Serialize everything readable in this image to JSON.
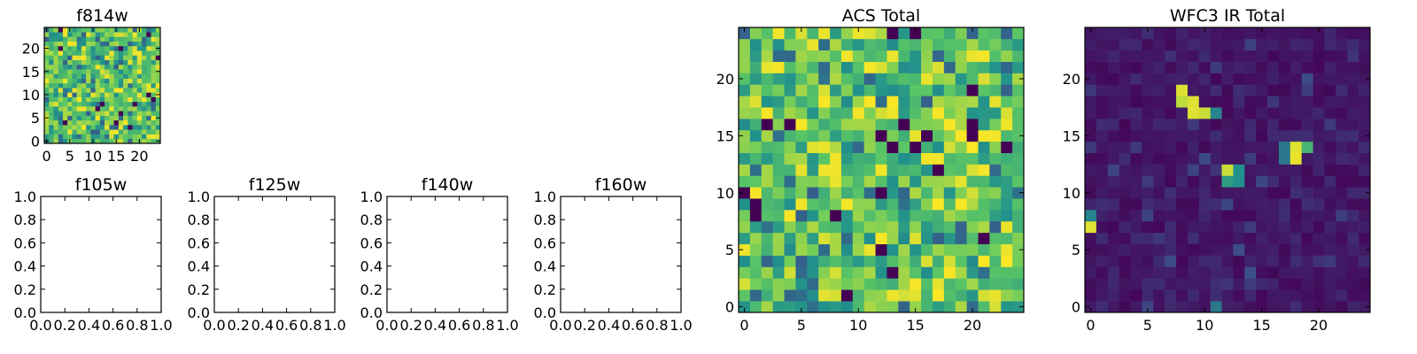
{
  "colormap": "viridis",
  "colormap_stops": [
    "#440154",
    "#3b528b",
    "#21918c",
    "#5ec962",
    "#fde725"
  ],
  "chart_data": [
    {
      "type": "heatmap",
      "title": "f814w",
      "grid_size": 25,
      "xlim": [
        -0.5,
        24.5
      ],
      "ylim": [
        -0.5,
        24.5
      ],
      "xticks": [
        "0",
        "5",
        "10",
        "15",
        "20"
      ],
      "yticks": [
        "0",
        "5",
        "10",
        "15",
        "20"
      ],
      "values_description": "noise pattern, mostly green-yellow",
      "seed": 11,
      "distribution": "acs"
    },
    {
      "type": "empty",
      "title": "f105w",
      "xticks": [
        "0.0",
        "0.2",
        "0.4",
        "0.6",
        "0.8",
        "1.0"
      ],
      "yticks": [
        "0.0",
        "0.2",
        "0.4",
        "0.6",
        "0.8",
        "1.0"
      ],
      "xlim": [
        0,
        1
      ],
      "ylim": [
        0,
        1
      ]
    },
    {
      "type": "empty",
      "title": "f125w",
      "xticks": [
        "0.0",
        "0.2",
        "0.4",
        "0.6",
        "0.8",
        "1.0"
      ],
      "yticks": [
        "0.0",
        "0.2",
        "0.4",
        "0.6",
        "0.8",
        "1.0"
      ],
      "xlim": [
        0,
        1
      ],
      "ylim": [
        0,
        1
      ]
    },
    {
      "type": "empty",
      "title": "f140w",
      "xticks": [
        "0.0",
        "0.2",
        "0.4",
        "0.6",
        "0.8",
        "1.0"
      ],
      "yticks": [
        "0.0",
        "0.2",
        "0.4",
        "0.6",
        "0.8",
        "1.0"
      ],
      "xlim": [
        0,
        1
      ],
      "ylim": [
        0,
        1
      ]
    },
    {
      "type": "empty",
      "title": "f160w",
      "xticks": [
        "0.0",
        "0.2",
        "0.4",
        "0.6",
        "0.8",
        "1.0"
      ],
      "yticks": [
        "0.0",
        "0.2",
        "0.4",
        "0.6",
        "0.8",
        "1.0"
      ],
      "xlim": [
        0,
        1
      ],
      "ylim": [
        0,
        1
      ]
    },
    {
      "type": "heatmap",
      "title": "ACS Total",
      "grid_size": 25,
      "xlim": [
        -0.5,
        24.5
      ],
      "ylim": [
        -0.5,
        24.5
      ],
      "xticks": [
        "0",
        "5",
        "10",
        "15",
        "20"
      ],
      "yticks": [
        "0",
        "5",
        "10",
        "15",
        "20"
      ],
      "seed": 23,
      "distribution": "acs"
    },
    {
      "type": "heatmap",
      "title": "WFC3 IR Total",
      "grid_size": 25,
      "xlim": [
        -0.5,
        24.5
      ],
      "ylim": [
        -0.5,
        24.5
      ],
      "xticks": [
        "0",
        "5",
        "10",
        "15",
        "20"
      ],
      "yticks": [
        "0",
        "5",
        "10",
        "15",
        "20"
      ],
      "seed": 7,
      "distribution": "ir",
      "bright_pixels": [
        {
          "x": 8,
          "y": 19,
          "value": 0.95
        },
        {
          "x": 8,
          "y": 18,
          "value": 0.9
        },
        {
          "x": 9,
          "y": 18,
          "value": 0.95
        },
        {
          "x": 9,
          "y": 17,
          "value": 0.95
        },
        {
          "x": 10,
          "y": 17,
          "value": 0.92
        },
        {
          "x": 11,
          "y": 17,
          "value": 0.45
        },
        {
          "x": 18,
          "y": 14,
          "value": 0.95
        },
        {
          "x": 18,
          "y": 13,
          "value": 0.97
        },
        {
          "x": 19,
          "y": 14,
          "value": 0.65
        },
        {
          "x": 17,
          "y": 13,
          "value": 0.4
        },
        {
          "x": 17,
          "y": 14,
          "value": 0.4
        },
        {
          "x": 12,
          "y": 12,
          "value": 0.92
        },
        {
          "x": 13,
          "y": 12,
          "value": 0.5
        },
        {
          "x": 12,
          "y": 11,
          "value": 0.55
        },
        {
          "x": 13,
          "y": 11,
          "value": 0.5
        },
        {
          "x": 0,
          "y": 7,
          "value": 0.95
        },
        {
          "x": 0,
          "y": 8,
          "value": 0.45
        },
        {
          "x": 11,
          "y": 0,
          "value": 0.4
        }
      ]
    }
  ]
}
